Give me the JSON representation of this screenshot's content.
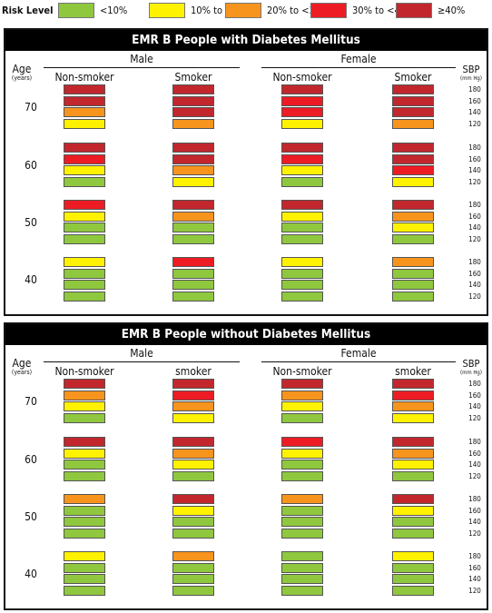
{
  "legend": {
    "title": "Risk Level",
    "items": [
      {
        "label": "<10%",
        "color": "#8fc73e"
      },
      {
        "label": "10% to <20%",
        "color": "#fff200"
      },
      {
        "label": "20% to <30%",
        "color": "#f7941d"
      },
      {
        "label": "30% to <40%",
        "color": "#ed1c24"
      },
      {
        "label": "≥40%",
        "color": "#c1272d"
      }
    ]
  },
  "chart_data": [
    {
      "type": "heatmap",
      "title": "EMR B People with Diabetes Mellitus",
      "age_header": "Age",
      "age_unit": "(years)",
      "sbp_header": "SBP",
      "sbp_unit": "(mm Hg)",
      "sexes": [
        "Male",
        "Female"
      ],
      "groups": [
        "Non-smoker",
        "Smoker",
        "Non-smoker",
        "Smoker"
      ],
      "ages": [
        "70",
        "60",
        "50",
        "40"
      ],
      "sbp_levels": [
        "180",
        "160",
        "140",
        "120"
      ],
      "levels_note": "risk level index per cell: 0=<10%, 1=10% to <20%, 2=20% to <30%, 3=30% to <40%, 4=≥40%; rows ordered SBP 180,160,140,120",
      "cells": [
        [
          [
            4,
            4,
            2,
            1
          ],
          [
            4,
            4,
            4,
            2
          ],
          [
            4,
            3,
            3,
            1
          ],
          [
            4,
            4,
            4,
            2
          ]
        ],
        [
          [
            4,
            3,
            1,
            0
          ],
          [
            4,
            4,
            2,
            1
          ],
          [
            4,
            3,
            1,
            0
          ],
          [
            4,
            4,
            3,
            1
          ]
        ],
        [
          [
            3,
            1,
            0,
            0
          ],
          [
            4,
            2,
            0,
            0
          ],
          [
            4,
            1,
            0,
            0
          ],
          [
            4,
            2,
            1,
            0
          ]
        ],
        [
          [
            1,
            0,
            0,
            0
          ],
          [
            3,
            0,
            0,
            0
          ],
          [
            1,
            0,
            0,
            0
          ],
          [
            2,
            0,
            0,
            0
          ]
        ]
      ]
    },
    {
      "type": "heatmap",
      "title": "EMR B People without Diabetes Mellitus",
      "age_header": "Age",
      "age_unit": "(years)",
      "sbp_header": "SBP",
      "sbp_unit": "(mm Hg)",
      "sexes": [
        "Male",
        "Female"
      ],
      "groups": [
        "Non-smoker",
        "smoker",
        "Non-smoker",
        "smoker"
      ],
      "ages": [
        "70",
        "60",
        "50",
        "40"
      ],
      "sbp_levels": [
        "180",
        "160",
        "140",
        "120"
      ],
      "levels_note": "risk level index per cell: 0=<10%, 1=10% to <20%, 2=20% to <30%, 3=30% to <40%, 4=≥40%; rows ordered SBP 180,160,140,120",
      "cells": [
        [
          [
            4,
            2,
            1,
            0
          ],
          [
            4,
            3,
            2,
            1
          ],
          [
            4,
            2,
            1,
            0
          ],
          [
            4,
            3,
            2,
            1
          ]
        ],
        [
          [
            4,
            1,
            0,
            0
          ],
          [
            4,
            2,
            1,
            0
          ],
          [
            3,
            1,
            0,
            0
          ],
          [
            4,
            2,
            1,
            0
          ]
        ],
        [
          [
            2,
            0,
            0,
            0
          ],
          [
            4,
            1,
            0,
            0
          ],
          [
            2,
            0,
            0,
            0
          ],
          [
            4,
            1,
            0,
            0
          ]
        ],
        [
          [
            1,
            0,
            0,
            0
          ],
          [
            2,
            0,
            0,
            0
          ],
          [
            0,
            0,
            0,
            0
          ],
          [
            1,
            0,
            0,
            0
          ]
        ]
      ]
    }
  ]
}
